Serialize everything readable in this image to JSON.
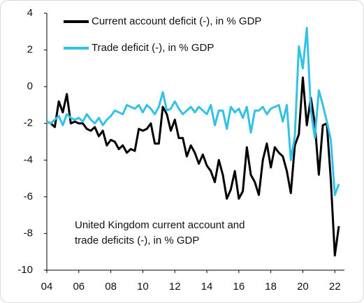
{
  "chart_data": {
    "type": "line",
    "legend_position": "upper left",
    "annotation": [
      "United Kingdom current account and",
      "trade deficits (-), in % GDP"
    ],
    "x": [
      4,
      4.25,
      4.5,
      4.75,
      5,
      5.25,
      5.5,
      5.75,
      6,
      6.25,
      6.5,
      6.75,
      7,
      7.25,
      7.5,
      7.75,
      8,
      8.25,
      8.5,
      8.75,
      9,
      9.25,
      9.5,
      9.75,
      10,
      10.25,
      10.5,
      10.75,
      11,
      11.25,
      11.5,
      11.75,
      12,
      12.25,
      12.5,
      12.75,
      13,
      13.25,
      13.5,
      13.75,
      14,
      14.25,
      14.5,
      14.75,
      15,
      15.25,
      15.5,
      15.75,
      16,
      16.25,
      16.5,
      16.75,
      17,
      17.25,
      17.5,
      17.75,
      18,
      18.25,
      18.5,
      18.75,
      19,
      19.25,
      19.5,
      19.75,
      20,
      20.25,
      20.5,
      20.75,
      21,
      21.25,
      21.5,
      21.75,
      22,
      22.25
    ],
    "series": [
      {
        "name": "Current account deficit (-), in % GDP",
        "color": "#000000",
        "values": [
          -1.9,
          -2.0,
          -2.2,
          -0.8,
          -1.4,
          -0.4,
          -2.0,
          -1.9,
          -2.0,
          -2.0,
          -2.3,
          -2.4,
          -2.2,
          -2.7,
          -2.4,
          -3.2,
          -2.9,
          -3.0,
          -3.4,
          -3.2,
          -3.6,
          -3.4,
          -3.5,
          -2.3,
          -2.4,
          -2.3,
          -2.0,
          -3.1,
          -3.1,
          -1.1,
          -1.5,
          -2.4,
          -1.8,
          -2.8,
          -2.8,
          -3.8,
          -3.2,
          -3.6,
          -4.2,
          -3.7,
          -4.3,
          -4.6,
          -5.2,
          -4.0,
          -4.8,
          -6.1,
          -5.6,
          -4.6,
          -6.1,
          -5.7,
          -3.3,
          -4.8,
          -5.2,
          -5.9,
          -4.0,
          -3.1,
          -4.4,
          -3.3,
          -3.6,
          -3.8,
          -4.6,
          -5.8,
          -3.2,
          -2.6,
          0.5,
          -2.1,
          -0.6,
          -2.0,
          -4.8,
          -2.1,
          -2.0,
          -5.1,
          -9.2,
          -7.6
        ]
      },
      {
        "name": "Trade deficit (-), in % GDP",
        "color": "#33c1e8",
        "values": [
          -1.9,
          -2.0,
          -1.8,
          -1.6,
          -2.1,
          -1.5,
          -1.7,
          -1.8,
          -1.7,
          -1.9,
          -1.5,
          -1.8,
          -2.0,
          -1.7,
          -2.1,
          -1.8,
          -1.6,
          -1.3,
          -1.4,
          -1.5,
          -1.0,
          -1.1,
          -1.2,
          -1.0,
          -1.4,
          -1.0,
          -1.2,
          -1.5,
          -1.1,
          -0.3,
          -1.3,
          -1.2,
          -0.8,
          -1.2,
          -1.5,
          -1.3,
          -1.1,
          -1.4,
          -1.1,
          -1.3,
          -1.5,
          -1.0,
          -2.1,
          -1.3,
          -1.3,
          -2.3,
          -1.1,
          -1.4,
          -1.2,
          -1.7,
          -1.1,
          -2.5,
          -1.3,
          -1.3,
          -1.1,
          -1.5,
          -1.2,
          -1.1,
          -1.0,
          -1.9,
          -1.0,
          -4.0,
          -2.7,
          2.2,
          1.0,
          3.2,
          -1.3,
          -2.8,
          -0.2,
          -1.0,
          -1.9,
          -2.9,
          -5.9,
          -5.3
        ]
      }
    ],
    "xlim": [
      4,
      22.6
    ],
    "xticks": [
      {
        "value": 4,
        "label": "04"
      },
      {
        "value": 6,
        "label": "06"
      },
      {
        "value": 8,
        "label": "08"
      },
      10,
      12,
      14,
      16,
      18,
      20,
      22
    ],
    "ylim": [
      -10,
      4
    ],
    "yticks": [
      -10,
      -8,
      -6,
      -4,
      -2,
      0,
      2,
      4
    ]
  }
}
